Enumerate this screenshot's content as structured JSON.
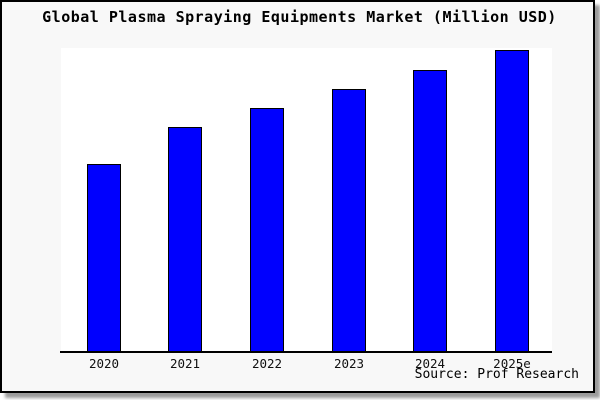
{
  "chart_data": {
    "type": "bar",
    "title": "Global Plasma Spraying Equipments Market (Million USD)",
    "categories": [
      "2020",
      "2021",
      "2022",
      "2023",
      "2024",
      "2025e"
    ],
    "series": [
      {
        "name": "Global Plasma Spraying Equipments Market",
        "values": [
          62.3,
          74.5,
          80.8,
          87.1,
          93.4,
          100
        ]
      }
    ],
    "values_note": "No y-axis or data labels are shown in the chart; values are relative bar heights normalized so 2025e = 100",
    "xlabel": "",
    "ylabel": "",
    "ylim": [
      0,
      100
    ],
    "y_axis_visible": false,
    "x_axis_visible": true,
    "gridlines": false,
    "legend_position": "none",
    "bar_color": "#0000fe",
    "bar_border_color": "#000000",
    "plot_background": "#ffffff",
    "frame_background": "#f8f8f8",
    "frame_border_color": "#000000"
  },
  "footer": {
    "source_note": "Source: Prof Research"
  }
}
